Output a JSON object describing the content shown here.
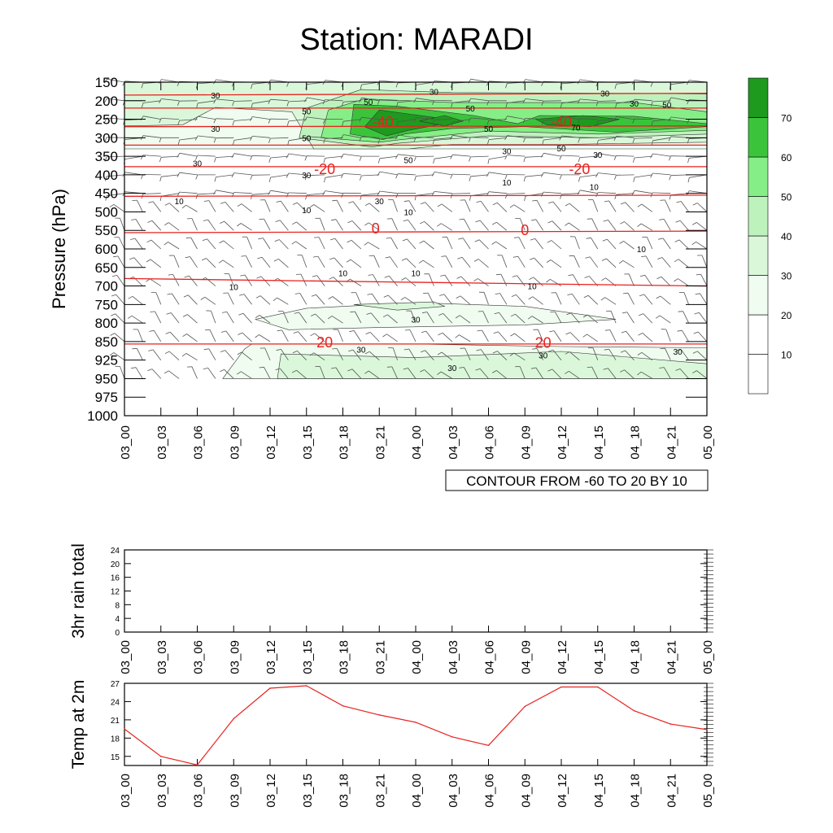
{
  "title": "Station: MARADI",
  "colors": {
    "wind_line": "#555555",
    "temp_contour": "#e8221f",
    "fill_levels": [
      "#ffffff",
      "#ffffff",
      "#effcef",
      "#daf7da",
      "#bdf2bd",
      "#86ee86",
      "#3bc43b",
      "#1e9a1e"
    ]
  },
  "chart_data": [
    {
      "type": "heatmap",
      "name": "pressure-time-cross-section",
      "ylabel": "Pressure (hPa)",
      "y_ticks": [
        150,
        200,
        250,
        300,
        350,
        400,
        450,
        500,
        550,
        600,
        650,
        700,
        750,
        800,
        850,
        925,
        950,
        975,
        1000
      ],
      "x_ticks": [
        "03_00",
        "03_03",
        "03_06",
        "03_09",
        "03_12",
        "03_15",
        "03_18",
        "03_21",
        "04_00",
        "04_03",
        "04_06",
        "04_09",
        "04_12",
        "04_15",
        "04_18",
        "04_21",
        "05_00"
      ],
      "annotation": "CONTOUR FROM -60 TO 20 BY 10",
      "colorbar": {
        "levels": [
          10,
          20,
          30,
          40,
          50,
          60,
          70
        ]
      },
      "temperature_contours": [
        {
          "level": "-40",
          "labels": [
            {
              "time_index": 7.1,
              "pressure": 258
            },
            {
              "time_index": 12.0,
              "pressure": 258
            }
          ]
        },
        {
          "level": "-20",
          "labels": [
            {
              "time_index": 5.5,
              "pressure": 385
            },
            {
              "time_index": 12.5,
              "pressure": 385
            }
          ]
        },
        {
          "level": "0",
          "labels": [
            {
              "time_index": 6.9,
              "pressure": 545
            },
            {
              "time_index": 11.0,
              "pressure": 550
            }
          ]
        },
        {
          "level": "20",
          "labels": [
            {
              "time_index": 5.5,
              "pressure": 853
            },
            {
              "time_index": 11.5,
              "pressure": 855
            }
          ]
        }
      ],
      "temperature_contour_pressures": [
        [
          185,
          180
        ],
        [
          220,
          220
        ],
        [
          270,
          268
        ],
        [
          320,
          320
        ],
        [
          378,
          378
        ],
        [
          458,
          455
        ],
        [
          556,
          552
        ],
        [
          680,
          700
        ],
        [
          860,
          860
        ]
      ],
      "speed_labels": [
        {
          "text": "30",
          "time_index": 2.5,
          "pressure": 185
        },
        {
          "text": "30",
          "time_index": 2.5,
          "pressure": 275
        },
        {
          "text": "30",
          "time_index": 8.5,
          "pressure": 175
        },
        {
          "text": "30",
          "time_index": 13.2,
          "pressure": 180
        },
        {
          "text": "30",
          "time_index": 14.0,
          "pressure": 207
        },
        {
          "text": "50",
          "time_index": 6.7,
          "pressure": 203
        },
        {
          "text": "50",
          "time_index": 9.5,
          "pressure": 220
        },
        {
          "text": "50",
          "time_index": 14.9,
          "pressure": 210
        },
        {
          "text": "50",
          "time_index": 5.0,
          "pressure": 228
        },
        {
          "text": "50",
          "time_index": 5.0,
          "pressure": 300
        },
        {
          "text": "50",
          "time_index": 7.8,
          "pressure": 360
        },
        {
          "text": "50",
          "time_index": 10.0,
          "pressure": 275
        },
        {
          "text": "50",
          "time_index": 12.0,
          "pressure": 328
        },
        {
          "text": "70",
          "time_index": 12.4,
          "pressure": 272
        },
        {
          "text": "30",
          "time_index": 10.5,
          "pressure": 335
        },
        {
          "text": "30",
          "time_index": 13.0,
          "pressure": 345
        },
        {
          "text": "30",
          "time_index": 2.0,
          "pressure": 368
        },
        {
          "text": "30",
          "time_index": 5.0,
          "pressure": 400
        },
        {
          "text": "30",
          "time_index": 7.0,
          "pressure": 470
        },
        {
          "text": "10",
          "time_index": 1.5,
          "pressure": 470
        },
        {
          "text": "10",
          "time_index": 5.0,
          "pressure": 495
        },
        {
          "text": "10",
          "time_index": 7.8,
          "pressure": 500
        },
        {
          "text": "10",
          "time_index": 10.5,
          "pressure": 420
        },
        {
          "text": "10",
          "time_index": 12.9,
          "pressure": 432
        },
        {
          "text": "10",
          "time_index": 14.2,
          "pressure": 600
        },
        {
          "text": "10",
          "time_index": 6.0,
          "pressure": 665
        },
        {
          "text": "10",
          "time_index": 8.0,
          "pressure": 665
        },
        {
          "text": "10",
          "time_index": 3.0,
          "pressure": 702
        },
        {
          "text": "10",
          "time_index": 11.2,
          "pressure": 700
        },
        {
          "text": "30",
          "time_index": 8.0,
          "pressure": 790
        },
        {
          "text": "30",
          "time_index": 6.5,
          "pressure": 882
        },
        {
          "text": "30",
          "time_index": 9.0,
          "pressure": 935
        },
        {
          "text": "30",
          "time_index": 11.5,
          "pressure": 905
        },
        {
          "text": "30",
          "time_index": 15.2,
          "pressure": 890
        }
      ]
    },
    {
      "type": "bar",
      "name": "rain",
      "ylabel": "3hr rain total",
      "ylim": [
        0,
        24
      ],
      "y_ticks": [
        0,
        4,
        8,
        12,
        16,
        20,
        24
      ],
      "categories": [
        "03_00",
        "03_03",
        "03_06",
        "03_09",
        "03_12",
        "03_15",
        "03_18",
        "03_21",
        "04_00",
        "04_03",
        "04_06",
        "04_09",
        "04_12",
        "04_15",
        "04_18",
        "04_21",
        "05_00"
      ],
      "values": [
        0,
        0,
        0,
        0,
        0,
        0,
        0,
        0,
        0,
        0,
        0,
        0,
        0,
        0,
        0,
        0,
        0
      ]
    },
    {
      "type": "line",
      "name": "temp2m",
      "ylabel": "Temp at 2m",
      "ylim": [
        13.5,
        27
      ],
      "y_ticks": [
        15,
        18,
        21,
        24,
        27
      ],
      "x": [
        "03_00",
        "03_03",
        "03_06",
        "03_09",
        "03_12",
        "03_15",
        "03_18",
        "03_21",
        "04_00",
        "04_03",
        "04_06",
        "04_09",
        "04_12",
        "04_15",
        "04_18",
        "04_21",
        "05_00"
      ],
      "values": [
        19.5,
        15.0,
        13.6,
        21.2,
        26.2,
        26.6,
        23.3,
        21.8,
        20.6,
        18.2,
        16.8,
        23.2,
        26.4,
        26.4,
        22.5,
        20.3,
        19.4
      ]
    }
  ]
}
